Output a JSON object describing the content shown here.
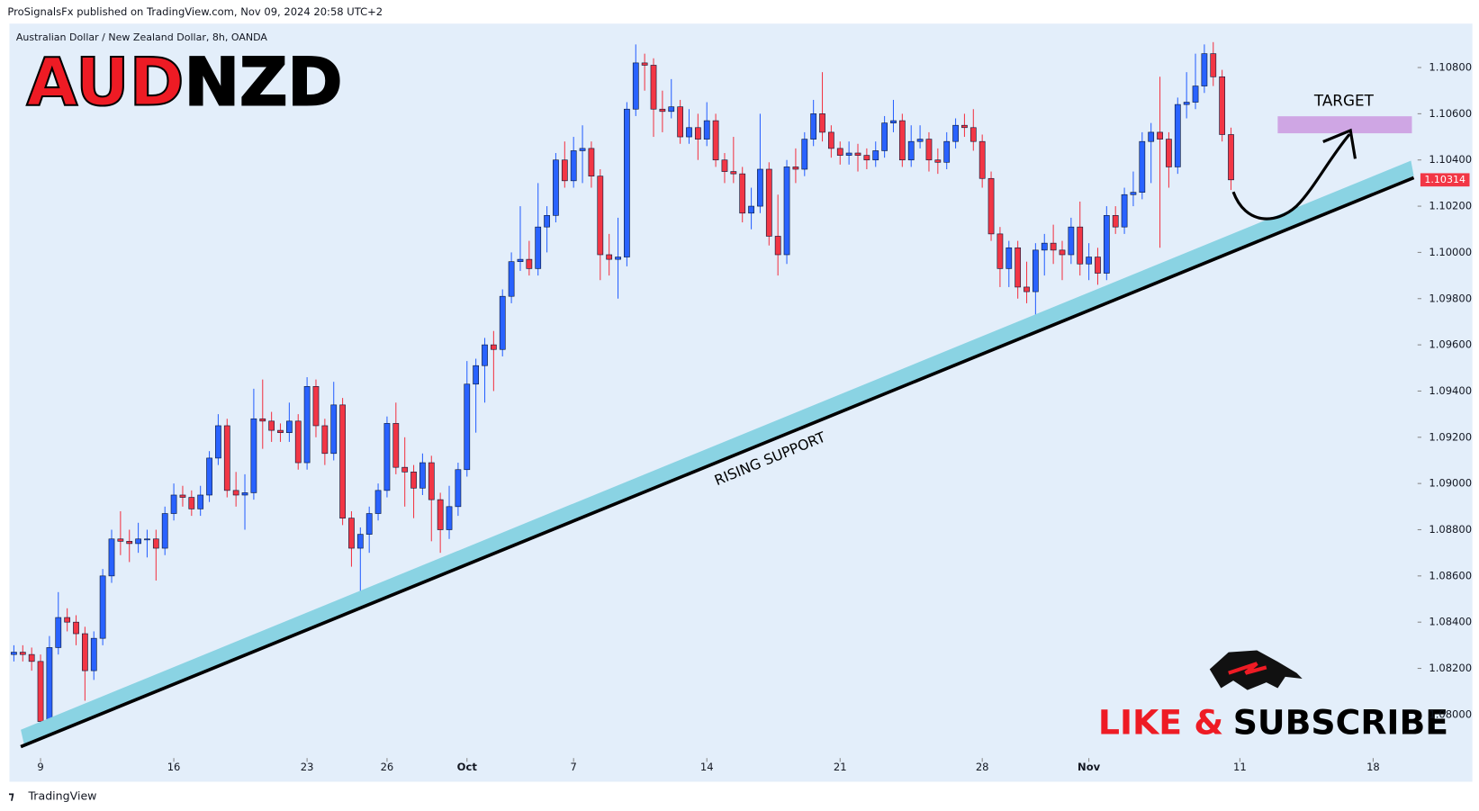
{
  "header": {
    "text": "ProSignalsFx published on TradingView.com, Nov 09, 2024 20:58 UTC+2"
  },
  "footer": {
    "brand": "TradingView"
  },
  "chart_data": {
    "type": "candlestick",
    "subtitle": "Australian Dollar / New Zealand Dollar, 8h, OANDA",
    "title_parts": [
      "AUD",
      "NZD"
    ],
    "cta_parts": [
      "LIKE &",
      "SUBSCRIBE"
    ],
    "annotations": {
      "support": "RISING SUPPORT",
      "target": "TARGET"
    },
    "up_color": "#2962ff",
    "down_color": "#f23645",
    "last_price": {
      "value": 1.10314,
      "label": "1.10314"
    },
    "xlim": [
      -0.5,
      158
    ],
    "ylim": [
      1.0782,
      1.1099
    ],
    "xticks": [
      {
        "value": 3,
        "label": "9"
      },
      {
        "value": 18,
        "label": "16"
      },
      {
        "value": 33,
        "label": "23"
      },
      {
        "value": 42,
        "label": "26"
      },
      {
        "value": 51,
        "label": "Oct"
      },
      {
        "value": 63,
        "label": "7"
      },
      {
        "value": 78,
        "label": "14"
      },
      {
        "value": 93,
        "label": "21"
      },
      {
        "value": 109,
        "label": "28"
      },
      {
        "value": 121,
        "label": "Nov"
      },
      {
        "value": 138,
        "label": "11"
      },
      {
        "value": 153,
        "label": "18"
      }
    ],
    "yticks": [
      {
        "value": 1.08,
        "label": "1.08000"
      },
      {
        "value": 1.082,
        "label": "1.08200"
      },
      {
        "value": 1.084,
        "label": "1.08400"
      },
      {
        "value": 1.086,
        "label": "1.08600"
      },
      {
        "value": 1.088,
        "label": "1.08800"
      },
      {
        "value": 1.09,
        "label": "1.09000"
      },
      {
        "value": 1.092,
        "label": "1.09200"
      },
      {
        "value": 1.094,
        "label": "1.09400"
      },
      {
        "value": 1.096,
        "label": "1.09600"
      },
      {
        "value": 1.098,
        "label": "1.09800"
      },
      {
        "value": 1.1,
        "label": "1.10000"
      },
      {
        "value": 1.102,
        "label": "1.10200"
      },
      {
        "value": 1.104,
        "label": "1.10400"
      },
      {
        "value": 1.106,
        "label": "1.10600"
      },
      {
        "value": 1.108,
        "label": "1.10800"
      }
    ],
    "open": [
      1.0826,
      1.0827,
      1.0826,
      1.0823,
      1.0797,
      1.0829,
      1.0842,
      1.084,
      1.0835,
      1.0819,
      1.0833,
      1.086,
      1.0876,
      1.0875,
      1.0874,
      1.0876,
      1.0876,
      1.0872,
      1.0887,
      1.0895,
      1.0894,
      1.0889,
      1.0895,
      1.0911,
      1.0925,
      1.0897,
      1.0895,
      1.0896,
      1.0928,
      1.0927,
      1.0923,
      1.0922,
      1.0927,
      1.0909,
      1.0942,
      1.0925,
      1.0913,
      1.0934,
      1.0885,
      1.0872,
      1.0878,
      1.0887,
      1.0897,
      1.0926,
      1.0907,
      1.0905,
      1.0898,
      1.0909,
      1.0893,
      1.088,
      1.089,
      1.0906,
      1.0943,
      1.0951,
      1.096,
      1.0958,
      1.0981,
      1.0996,
      1.0997,
      1.0993,
      1.1011,
      1.1016,
      1.104,
      1.1031,
      1.1044,
      1.1045,
      1.1033,
      1.0999,
      1.0997,
      1.0998,
      1.1062,
      1.1082,
      1.1081,
      1.1062,
      1.1061,
      1.1063,
      1.105,
      1.1054,
      1.1049,
      1.1057,
      1.104,
      1.1035,
      1.1034,
      1.1017,
      1.102,
      1.1036,
      1.1007,
      1.0999,
      1.1037,
      1.1036,
      1.1049,
      1.106,
      1.1052,
      1.1045,
      1.1042,
      1.1043,
      1.1042,
      1.104,
      1.1044,
      1.1056,
      1.1057,
      1.104,
      1.1048,
      1.1049,
      1.104,
      1.1039,
      1.1048,
      1.1055,
      1.1054,
      1.1048,
      1.1032,
      1.1008,
      1.0993,
      1.1002,
      1.0985,
      1.0983,
      1.1001,
      1.1004,
      1.1001,
      1.0999,
      1.1011,
      1.0995,
      1.0998,
      1.0991,
      1.1016,
      1.1011,
      1.1025,
      1.1026,
      1.1048,
      1.1052,
      1.1049,
      1.1037,
      1.1064,
      1.1065,
      1.1072,
      1.1086,
      1.1076,
      1.1051
    ],
    "high": [
      1.083,
      1.083,
      1.0829,
      1.0826,
      1.0834,
      1.0853,
      1.0846,
      1.0843,
      1.0838,
      1.0836,
      1.0863,
      1.088,
      1.0888,
      1.088,
      1.0883,
      1.088,
      1.088,
      1.089,
      1.09,
      1.0899,
      1.0897,
      1.0899,
      1.0914,
      1.093,
      1.0928,
      1.0905,
      1.0904,
      1.0941,
      1.0945,
      1.0931,
      1.0926,
      1.0935,
      1.093,
      1.0946,
      1.0945,
      1.0928,
      1.0944,
      1.0937,
      1.0888,
      1.0881,
      1.089,
      1.09,
      1.0929,
      1.0935,
      1.092,
      1.0908,
      1.0913,
      1.0912,
      1.0896,
      1.0899,
      1.0909,
      1.0953,
      1.0954,
      1.0963,
      1.0966,
      1.0984,
      1.1,
      1.102,
      1.1005,
      1.103,
      1.102,
      1.1043,
      1.1048,
      1.105,
      1.1055,
      1.1048,
      1.1036,
      1.1008,
      1.1015,
      1.1065,
      1.109,
      1.1086,
      1.1084,
      1.107,
      1.1075,
      1.1066,
      1.1062,
      1.106,
      1.1065,
      1.106,
      1.1043,
      1.105,
      1.1037,
      1.1028,
      1.106,
      1.1039,
      1.1025,
      1.104,
      1.1045,
      1.1052,
      1.1066,
      1.1078,
      1.1055,
      1.1048,
      1.1048,
      1.1047,
      1.1045,
      1.1048,
      1.1059,
      1.1066,
      1.106,
      1.1055,
      1.1055,
      1.1052,
      1.1045,
      1.1052,
      1.1058,
      1.106,
      1.1062,
      1.1051,
      1.1035,
      1.1011,
      1.1005,
      1.1005,
      1.0996,
      1.1004,
      1.1008,
      1.1012,
      1.1005,
      1.1015,
      1.1022,
      1.1004,
      1.1002,
      1.102,
      1.102,
      1.1028,
      1.1035,
      1.1052,
      1.1056,
      1.1076,
      1.1052,
      1.1067,
      1.1078,
      1.1086,
      1.109,
      1.1091,
      1.1079,
      1.1054
    ],
    "low": [
      1.0823,
      1.0823,
      1.0819,
      1.0792,
      1.0794,
      1.0826,
      1.0836,
      1.083,
      1.0806,
      1.0815,
      1.083,
      1.0857,
      1.0869,
      1.0866,
      1.087,
      1.0868,
      1.0858,
      1.0869,
      1.0884,
      1.089,
      1.0886,
      1.0886,
      1.0892,
      1.0908,
      1.0894,
      1.089,
      1.088,
      1.0893,
      1.0915,
      1.0918,
      1.0918,
      1.0918,
      1.0906,
      1.0906,
      1.092,
      1.0908,
      1.091,
      1.0882,
      1.0864,
      1.0852,
      1.087,
      1.0884,
      1.0894,
      1.0904,
      1.089,
      1.0885,
      1.0895,
      1.0875,
      1.087,
      1.0876,
      1.0886,
      1.0903,
      1.0922,
      1.0935,
      1.094,
      1.0955,
      1.0978,
      1.0992,
      1.099,
      1.099,
      1.1,
      1.1013,
      1.1028,
      1.1028,
      1.103,
      1.1028,
      1.0988,
      1.099,
      1.098,
      1.0994,
      1.1059,
      1.107,
      1.105,
      1.1052,
      1.1058,
      1.1047,
      1.1047,
      1.104,
      1.1046,
      1.1037,
      1.103,
      1.103,
      1.1013,
      1.101,
      1.1017,
      1.1003,
      1.099,
      1.0995,
      1.103,
      1.1033,
      1.1046,
      1.1048,
      1.1041,
      1.1038,
      1.1038,
      1.1035,
      1.1036,
      1.1037,
      1.1041,
      1.1052,
      1.1037,
      1.1037,
      1.1045,
      1.1035,
      1.1034,
      1.1036,
      1.1045,
      1.105,
      1.1044,
      1.1028,
      1.1005,
      1.0985,
      1.0985,
      1.098,
      1.0978,
      1.0966,
      1.099,
      1.0995,
      1.0988,
      1.0995,
      1.099,
      1.0988,
      1.0986,
      1.0988,
      1.1008,
      1.1008,
      1.102,
      1.1023,
      1.103,
      1.1002,
      1.1028,
      1.1034,
      1.1058,
      1.1062,
      1.1069,
      1.1072,
      1.1048,
      1.1027
    ],
    "close": [
      1.0827,
      1.0826,
      1.0823,
      1.0797,
      1.0829,
      1.0842,
      1.084,
      1.0835,
      1.0819,
      1.0833,
      1.086,
      1.0876,
      1.0875,
      1.0874,
      1.0876,
      1.0876,
      1.0872,
      1.0887,
      1.0895,
      1.0894,
      1.0889,
      1.0895,
      1.0911,
      1.0925,
      1.0897,
      1.0895,
      1.0896,
      1.0928,
      1.0927,
      1.0923,
      1.0922,
      1.0927,
      1.0909,
      1.0942,
      1.0925,
      1.0913,
      1.0934,
      1.0885,
      1.0872,
      1.0878,
      1.0887,
      1.0897,
      1.0926,
      1.0907,
      1.0905,
      1.0898,
      1.0909,
      1.0893,
      1.088,
      1.089,
      1.0906,
      1.0943,
      1.0951,
      1.096,
      1.0958,
      1.0981,
      1.0996,
      1.0997,
      1.0993,
      1.1011,
      1.1016,
      1.104,
      1.1031,
      1.1044,
      1.1045,
      1.1033,
      1.0999,
      1.0997,
      1.0998,
      1.1062,
      1.1082,
      1.1081,
      1.1062,
      1.1061,
      1.1063,
      1.105,
      1.1054,
      1.1049,
      1.1057,
      1.104,
      1.1035,
      1.1034,
      1.1017,
      1.102,
      1.1036,
      1.1007,
      1.0999,
      1.1037,
      1.1036,
      1.1049,
      1.106,
      1.1052,
      1.1045,
      1.1042,
      1.1043,
      1.1042,
      1.104,
      1.1044,
      1.1056,
      1.1057,
      1.104,
      1.1048,
      1.1049,
      1.104,
      1.1039,
      1.1048,
      1.1055,
      1.1054,
      1.1048,
      1.1032,
      1.1008,
      1.0993,
      1.1002,
      1.0985,
      1.0983,
      1.1001,
      1.1004,
      1.1001,
      1.0999,
      1.1011,
      1.0995,
      1.0998,
      1.0991,
      1.1016,
      1.1011,
      1.1025,
      1.1026,
      1.1048,
      1.1052,
      1.1049,
      1.1037,
      1.1064,
      1.1065,
      1.1072,
      1.1086,
      1.1076,
      1.1051,
      1.10314
    ]
  }
}
